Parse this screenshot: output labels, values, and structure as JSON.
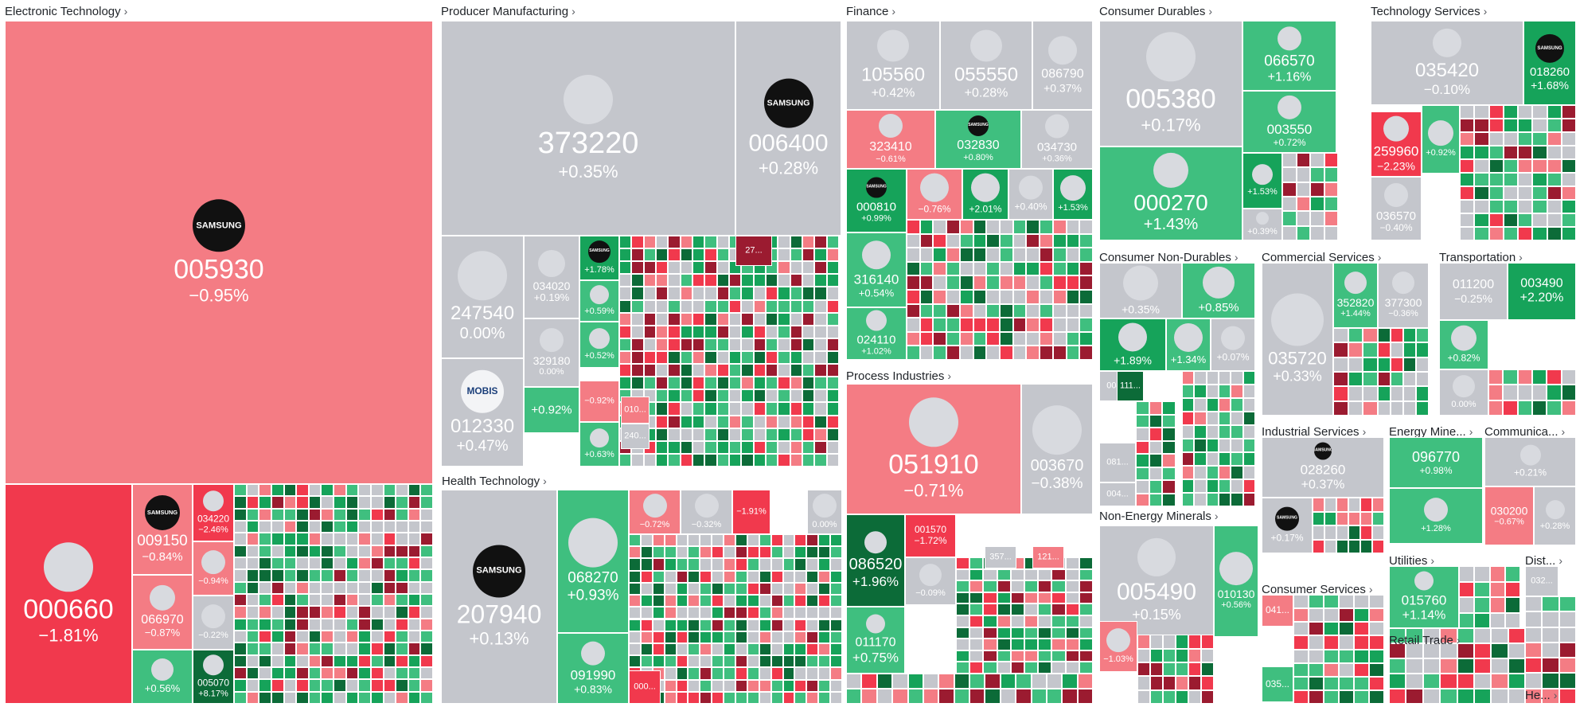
{
  "colors": {
    "neutral": "#c4c6cc",
    "up_light": "#3fbf7f",
    "up_mid": "#16a35a",
    "up_dark": "#0c6b38",
    "down_light": "#f47c84",
    "down_mid": "#f1394d",
    "down_dark": "#9b1b30",
    "text": "#ffffff",
    "header_text": "#1f2328"
  },
  "chart_data": {
    "type": "treemap",
    "title": "",
    "sectors": [
      {
        "name": "Electronic Technology",
        "tiles": [
          {
            "ticker": "005930",
            "change": "−0.95%",
            "logo": "samsung-logo"
          },
          {
            "ticker": "000660",
            "change": "−1.81%",
            "logo": "generic-logo"
          },
          {
            "ticker": "009150",
            "change": "−0.84%",
            "logo": "samsung-logo"
          },
          {
            "ticker": "066970",
            "change": "−0.87%",
            "logo": "generic-logo"
          },
          {
            "ticker": "",
            "change": "+0.56%",
            "logo": "generic-logo"
          },
          {
            "ticker": "034220",
            "change": "−2.46%",
            "logo": "generic-logo"
          },
          {
            "ticker": "",
            "change": "−0.94%",
            "logo": "generic-logo"
          },
          {
            "ticker": "",
            "change": "−0.22%",
            "logo": "generic-logo"
          },
          {
            "ticker": "005070",
            "change": "+8.17%",
            "logo": "generic-logo"
          }
        ]
      },
      {
        "name": "Producer Manufacturing",
        "tiles": [
          {
            "ticker": "373220",
            "change": "+0.35%",
            "logo": "generic-logo"
          },
          {
            "ticker": "006400",
            "change": "+0.28%",
            "logo": "samsung-logo"
          },
          {
            "ticker": "247540",
            "change": "0.00%",
            "logo": "generic-logo"
          },
          {
            "ticker": "034020",
            "change": "+0.19%",
            "logo": "generic-logo"
          },
          {
            "ticker": "329180",
            "change": "0.00%",
            "logo": "generic-logo"
          },
          {
            "ticker": "012330",
            "change": "+0.47%",
            "logo": "mobis-logo"
          },
          {
            "ticker": "",
            "change": "+0.92%",
            "logo": "generic-logo"
          },
          {
            "ticker": "",
            "change": "+1.78%",
            "logo": "samsung-logo"
          },
          {
            "ticker": "",
            "change": "+0.59%",
            "logo": "generic-logo"
          },
          {
            "ticker": "",
            "change": "+0.52%",
            "logo": "generic-logo"
          },
          {
            "ticker": "",
            "change": "+0.63%",
            "logo": "generic-logo"
          },
          {
            "ticker": "",
            "change": "−0.92%",
            "logo": "generic-logo"
          },
          {
            "ticker": "27...",
            "change": "",
            "logo": ""
          },
          {
            "ticker": "010...",
            "change": "",
            "logo": ""
          },
          {
            "ticker": "240...",
            "change": "",
            "logo": ""
          }
        ]
      },
      {
        "name": "Health Technology",
        "tiles": [
          {
            "ticker": "207940",
            "change": "+0.13%",
            "logo": "samsung-logo"
          },
          {
            "ticker": "068270",
            "change": "+0.93%",
            "logo": "generic-logo"
          },
          {
            "ticker": "091990",
            "change": "+0.83%",
            "logo": "generic-logo"
          },
          {
            "ticker": "",
            "change": "−0.72%",
            "logo": "generic-logo"
          },
          {
            "ticker": "",
            "change": "−0.32%",
            "logo": "generic-logo"
          },
          {
            "ticker": "",
            "change": "−1.91%",
            "logo": "generic-logo"
          },
          {
            "ticker": "",
            "change": "0.00%",
            "logo": "generic-logo"
          },
          {
            "ticker": "000...",
            "change": "",
            "logo": ""
          }
        ]
      },
      {
        "name": "Finance",
        "tiles": [
          {
            "ticker": "105560",
            "change": "+0.42%",
            "logo": "generic-logo"
          },
          {
            "ticker": "055550",
            "change": "+0.28%",
            "logo": "generic-logo"
          },
          {
            "ticker": "086790",
            "change": "+0.37%",
            "logo": "generic-logo"
          },
          {
            "ticker": "323410",
            "change": "−0.61%",
            "logo": "generic-logo"
          },
          {
            "ticker": "032830",
            "change": "+0.80%",
            "logo": "samsung-logo"
          },
          {
            "ticker": "034730",
            "change": "+0.36%",
            "logo": "generic-logo"
          },
          {
            "ticker": "000810",
            "change": "+0.99%",
            "logo": "samsung-logo"
          },
          {
            "ticker": "",
            "change": "−0.76%",
            "logo": "generic-logo"
          },
          {
            "ticker": "",
            "change": "+2.01%",
            "logo": "generic-logo"
          },
          {
            "ticker": "",
            "change": "+0.40%",
            "logo": "generic-logo"
          },
          {
            "ticker": "",
            "change": "+1.53%",
            "logo": "generic-logo"
          },
          {
            "ticker": "316140",
            "change": "+0.54%",
            "logo": "generic-logo"
          },
          {
            "ticker": "024110",
            "change": "+1.02%",
            "logo": "generic-logo"
          }
        ]
      },
      {
        "name": "Process Industries",
        "tiles": [
          {
            "ticker": "051910",
            "change": "−0.71%",
            "logo": "generic-logo"
          },
          {
            "ticker": "003670",
            "change": "−0.38%",
            "logo": "generic-logo"
          },
          {
            "ticker": "086520",
            "change": "+1.96%",
            "logo": "generic-logo"
          },
          {
            "ticker": "001570",
            "change": "−1.72%",
            "logo": ""
          },
          {
            "ticker": "",
            "change": "−0.09%",
            "logo": "generic-logo"
          },
          {
            "ticker": "011170",
            "change": "+0.75%",
            "logo": "generic-logo"
          },
          {
            "ticker": "357...",
            "change": "",
            "logo": ""
          },
          {
            "ticker": "121...",
            "change": "",
            "logo": ""
          }
        ]
      },
      {
        "name": "Consumer Durables",
        "tiles": [
          {
            "ticker": "005380",
            "change": "+0.17%",
            "logo": "generic-logo"
          },
          {
            "ticker": "066570",
            "change": "+1.16%",
            "logo": "generic-logo"
          },
          {
            "ticker": "003550",
            "change": "+0.72%",
            "logo": "generic-logo"
          },
          {
            "ticker": "000270",
            "change": "+1.43%",
            "logo": "generic-logo"
          },
          {
            "ticker": "",
            "change": "+1.53%",
            "logo": "generic-logo"
          },
          {
            "ticker": "",
            "change": "+0.39%",
            "logo": "generic-logo"
          }
        ]
      },
      {
        "name": "Technology Services",
        "tiles": [
          {
            "ticker": "035420",
            "change": "−0.10%",
            "logo": "generic-logo"
          },
          {
            "ticker": "018260",
            "change": "+1.68%",
            "logo": "samsung-logo"
          },
          {
            "ticker": "259960",
            "change": "−2.23%",
            "logo": "generic-logo"
          },
          {
            "ticker": "",
            "change": "+0.92%",
            "logo": "generic-logo"
          },
          {
            "ticker": "036570",
            "change": "−0.40%",
            "logo": "generic-logo"
          }
        ]
      },
      {
        "name": "Consumer Non-Durables",
        "tiles": [
          {
            "ticker": "",
            "change": "+0.35%",
            "logo": "generic-logo"
          },
          {
            "ticker": "",
            "change": "+0.85%",
            "logo": "generic-logo"
          },
          {
            "ticker": "",
            "change": "+1.89%",
            "logo": "generic-logo"
          },
          {
            "ticker": "",
            "change": "+1.34%",
            "logo": "generic-logo"
          },
          {
            "ticker": "",
            "change": "+0.07%",
            "logo": "generic-logo"
          },
          {
            "ticker": "004...",
            "change": "",
            "logo": ""
          },
          {
            "ticker": "111...",
            "change": "",
            "logo": ""
          },
          {
            "ticker": "081...",
            "change": "",
            "logo": ""
          },
          {
            "ticker": "004...",
            "change": "",
            "logo": ""
          }
        ]
      },
      {
        "name": "Commercial Services",
        "tiles": [
          {
            "ticker": "035720",
            "change": "+0.33%",
            "logo": "generic-logo"
          },
          {
            "ticker": "352820",
            "change": "+1.44%",
            "logo": "generic-logo"
          },
          {
            "ticker": "377300",
            "change": "−0.36%",
            "logo": "generic-logo"
          }
        ]
      },
      {
        "name": "Transportation",
        "tiles": [
          {
            "ticker": "011200",
            "change": "−0.25%",
            "logo": ""
          },
          {
            "ticker": "003490",
            "change": "+2.20%",
            "logo": ""
          },
          {
            "ticker": "",
            "change": "+0.82%",
            "logo": "generic-logo"
          },
          {
            "ticker": "",
            "change": "0.00%",
            "logo": "generic-logo"
          }
        ]
      },
      {
        "name": "Non-Energy Minerals",
        "tiles": [
          {
            "ticker": "005490",
            "change": "+0.15%",
            "logo": "generic-logo"
          },
          {
            "ticker": "010130",
            "change": "+0.56%",
            "logo": "generic-logo"
          },
          {
            "ticker": "",
            "change": "−1.03%",
            "logo": "generic-logo"
          }
        ]
      },
      {
        "name": "Industrial Services",
        "tiles": [
          {
            "ticker": "028260",
            "change": "+0.37%",
            "logo": "samsung-logo"
          },
          {
            "ticker": "",
            "change": "+0.17%",
            "logo": "samsung-logo"
          }
        ]
      },
      {
        "name": "Energy Mine...",
        "tiles": [
          {
            "ticker": "096770",
            "change": "+0.98%",
            "logo": ""
          },
          {
            "ticker": "",
            "change": "+1.28%",
            "logo": "generic-logo"
          }
        ]
      },
      {
        "name": "Communica...",
        "tiles": [
          {
            "ticker": "",
            "change": "+0.21%",
            "logo": "generic-logo"
          },
          {
            "ticker": "030200",
            "change": "−0.67%",
            "logo": ""
          },
          {
            "ticker": "",
            "change": "+0.28%",
            "logo": "generic-logo"
          }
        ]
      },
      {
        "name": "Consumer Services",
        "tiles": [
          {
            "ticker": "041...",
            "change": "",
            "logo": ""
          },
          {
            "ticker": "035...",
            "change": "",
            "logo": ""
          }
        ]
      },
      {
        "name": "Utilities",
        "tiles": [
          {
            "ticker": "015760",
            "change": "+1.14%",
            "logo": "generic-logo"
          }
        ]
      },
      {
        "name": "Dist...",
        "tiles": [
          {
            "ticker": "032...",
            "change": "",
            "logo": ""
          }
        ]
      },
      {
        "name": "Retail Trade",
        "tiles": []
      },
      {
        "name": "He...",
        "tiles": []
      }
    ]
  }
}
